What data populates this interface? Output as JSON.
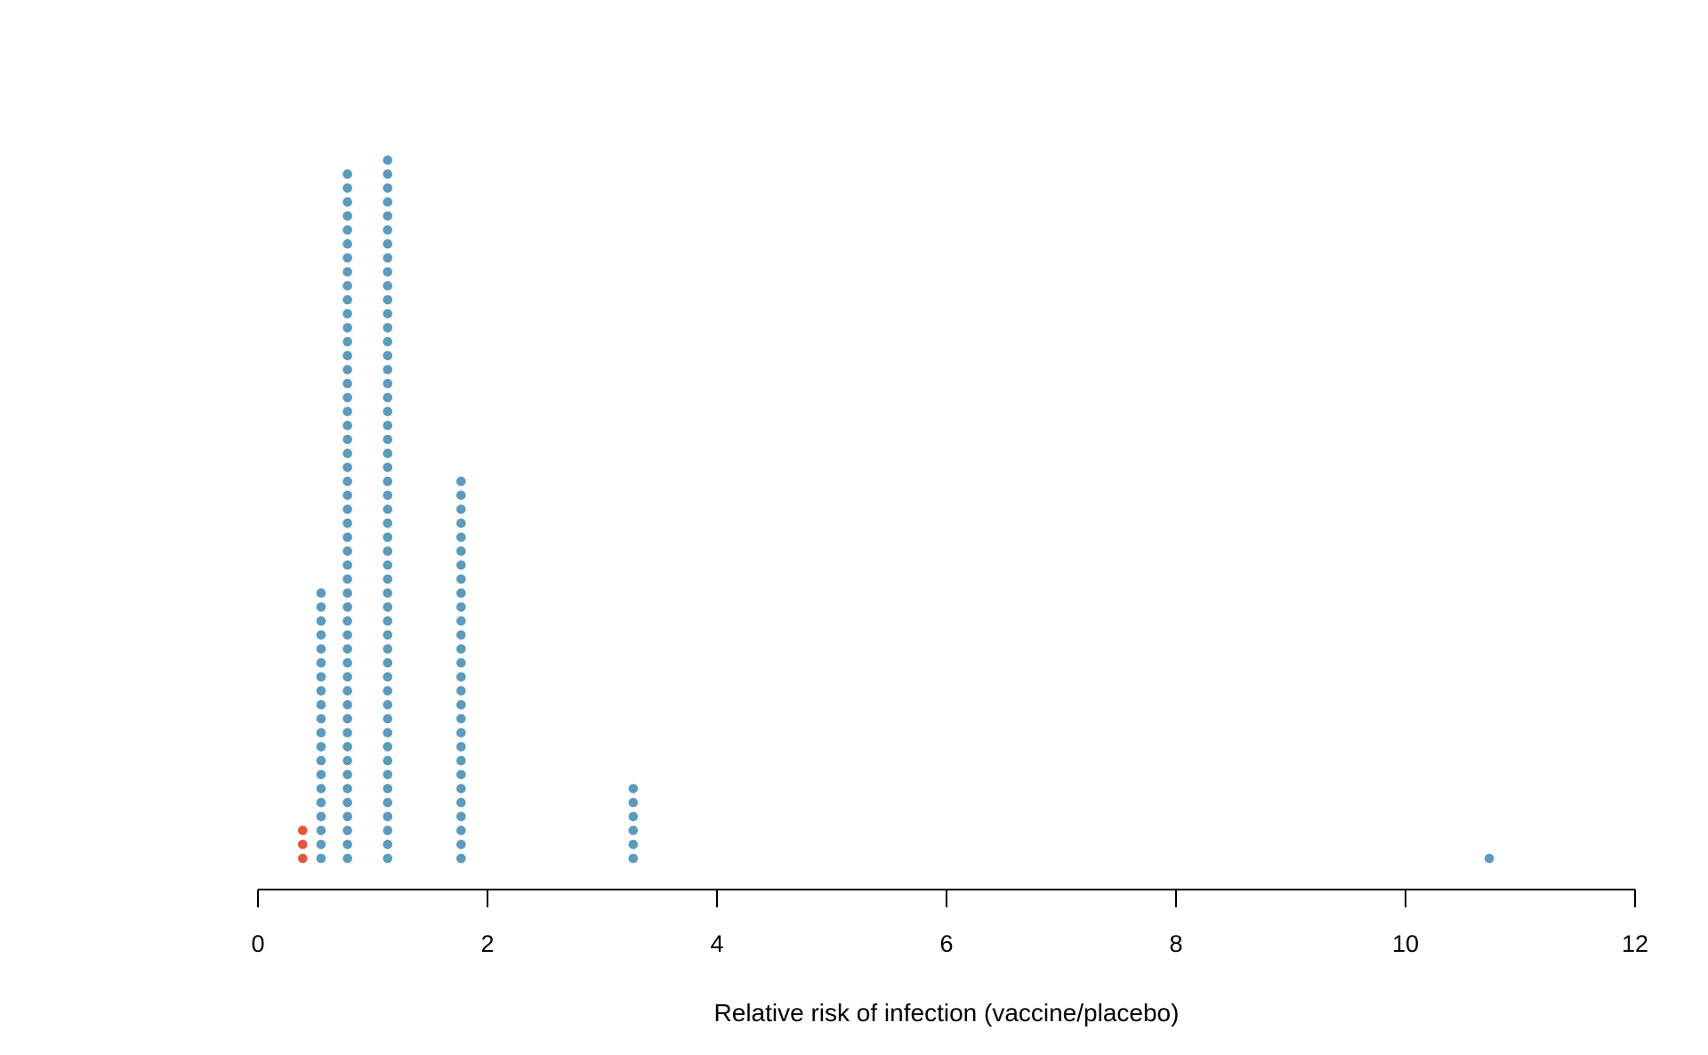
{
  "chart_data": {
    "type": "dot_plot",
    "title": "",
    "xlabel": "Relative risk of infection (vaccine/placebo)",
    "ylabel": "",
    "xlim": [
      0,
      12
    ],
    "xticks": [
      "0",
      "2",
      "4",
      "6",
      "8",
      "10",
      "12"
    ],
    "grid": false,
    "legend": "none",
    "colors": {
      "observed": "#e8543a",
      "simulated": "#5b9bbd"
    },
    "stacks": [
      {
        "x": 0.39,
        "count": 3,
        "highlight": true
      },
      {
        "x": 0.55,
        "count": 20,
        "highlight": false
      },
      {
        "x": 0.78,
        "count": 50,
        "highlight": false
      },
      {
        "x": 1.13,
        "count": 51,
        "highlight": false
      },
      {
        "x": 1.77,
        "count": 28,
        "highlight": false
      },
      {
        "x": 3.27,
        "count": 6,
        "highlight": false
      },
      {
        "x": 10.73,
        "count": 1,
        "highlight": false
      }
    ]
  }
}
